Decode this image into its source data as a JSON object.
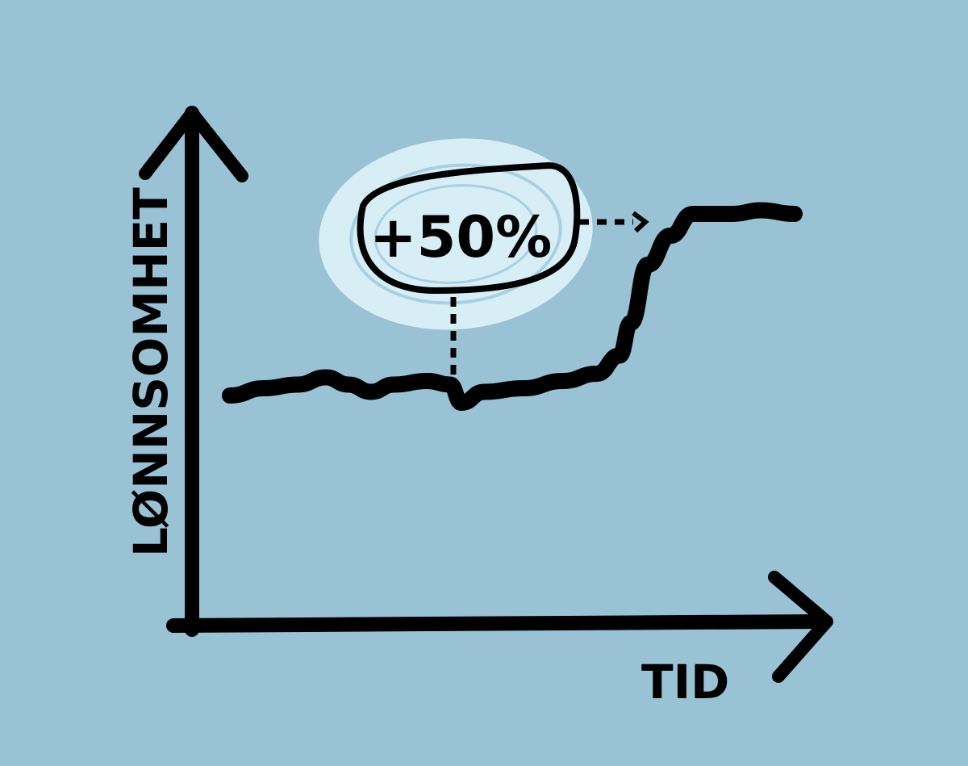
{
  "chart_data": {
    "type": "line",
    "title": "",
    "xlabel": "TID",
    "ylabel": "LØNNSOMHET",
    "grid": false,
    "legend": "none",
    "x": [
      0,
      6,
      12,
      17,
      21,
      25,
      29,
      35,
      39,
      41,
      45,
      52,
      59,
      65,
      69,
      71,
      74,
      78,
      82,
      89,
      94,
      100
    ],
    "series": [
      {
        "values": [
          100,
          102,
          103,
          105,
          103,
          101,
          103,
          104,
          103,
          98,
          101,
          102,
          104,
          106,
          111,
          120,
          136,
          144,
          150,
          150,
          151,
          150
        ]
      }
    ],
    "annotation": {
      "label": "+50%",
      "at_x": 39
    },
    "colors": {
      "background": "#99c2d5",
      "ink": "#000000",
      "highlight": "#d8eef7"
    }
  }
}
